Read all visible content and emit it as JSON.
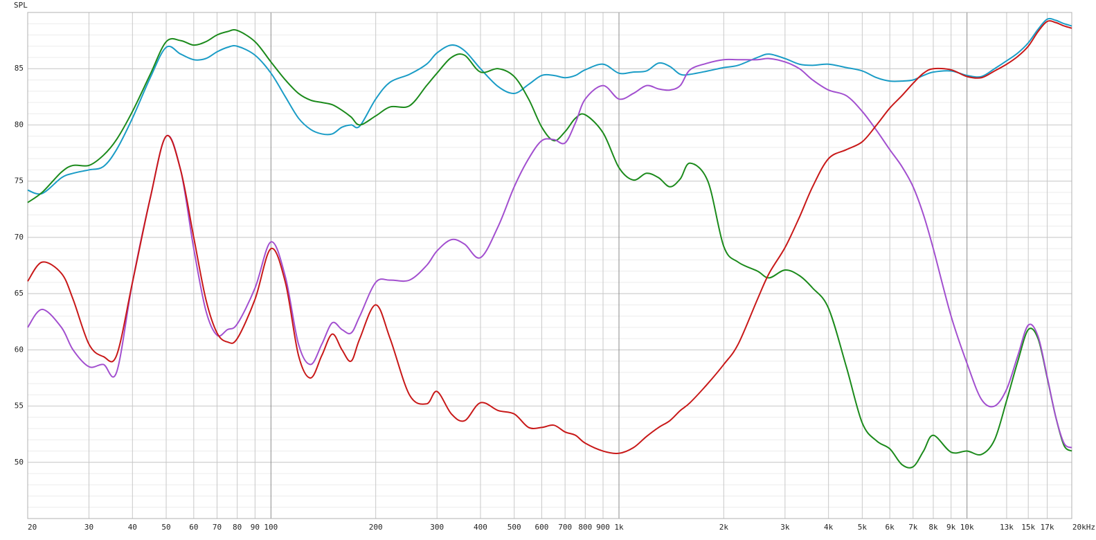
{
  "chart_data": {
    "type": "line",
    "y_label": "SPL",
    "x_scale": "log",
    "grid": true,
    "y_minor_step": 1,
    "xlim": [
      20,
      20000
    ],
    "ylim": [
      45,
      90
    ],
    "yticks": [
      50,
      55,
      60,
      65,
      70,
      75,
      80,
      85
    ],
    "xticks": [
      20,
      30,
      40,
      50,
      60,
      70,
      80,
      90,
      100,
      200,
      300,
      400,
      500,
      600,
      700,
      800,
      900,
      {
        "value": 1000,
        "label": "1k"
      },
      {
        "value": 2000,
        "label": "2k"
      },
      {
        "value": 3000,
        "label": "3k"
      },
      {
        "value": 4000,
        "label": "4k"
      },
      {
        "value": 5000,
        "label": "5k"
      },
      {
        "value": 6000,
        "label": "6k"
      },
      {
        "value": 7000,
        "label": "7k"
      },
      {
        "value": 8000,
        "label": "8k"
      },
      {
        "value": 9000,
        "label": "9k"
      },
      {
        "value": 10000,
        "label": "10k"
      },
      {
        "value": 13000,
        "label": "13k"
      },
      {
        "value": 15000,
        "label": "15k"
      },
      {
        "value": 17000,
        "label": "17k"
      },
      {
        "value": 20000,
        "label": "20kHz"
      }
    ],
    "x": [
      20,
      22,
      25,
      27,
      30,
      33,
      36,
      40,
      45,
      50,
      55,
      60,
      65,
      70,
      75,
      80,
      90,
      100,
      110,
      120,
      130,
      140,
      150,
      160,
      170,
      180,
      200,
      220,
      250,
      280,
      300,
      330,
      360,
      400,
      450,
      500,
      550,
      600,
      650,
      700,
      750,
      800,
      900,
      1000,
      1100,
      1200,
      1300,
      1400,
      1500,
      1600,
      1800,
      2000,
      2200,
      2500,
      2700,
      3000,
      3300,
      3600,
      4000,
      4500,
      5000,
      5500,
      6000,
      6500,
      7000,
      7500,
      8000,
      9000,
      10000,
      11000,
      12000,
      13000,
      14000,
      15000,
      16000,
      17000,
      18000,
      19000,
      20000
    ],
    "series": [
      {
        "color": "#1a9cc6",
        "values": [
          74.2,
          73.9,
          75.3,
          75.7,
          76.0,
          76.3,
          77.8,
          80.6,
          84.2,
          86.9,
          86.3,
          85.8,
          85.9,
          86.5,
          86.9,
          87.0,
          86.2,
          84.6,
          82.5,
          80.6,
          79.6,
          79.2,
          79.2,
          79.8,
          80.0,
          79.9,
          82.3,
          83.8,
          84.5,
          85.4,
          86.4,
          87.1,
          86.6,
          85.0,
          83.4,
          82.8,
          83.6,
          84.4,
          84.4,
          84.2,
          84.4,
          84.9,
          85.4,
          84.6,
          84.7,
          84.8,
          85.5,
          85.2,
          84.5,
          84.5,
          84.8,
          85.1,
          85.3,
          86.0,
          86.3,
          85.9,
          85.4,
          85.3,
          85.4,
          85.1,
          84.8,
          84.2,
          83.9,
          83.9,
          84.0,
          84.4,
          84.7,
          84.8,
          84.4,
          84.3,
          85.0,
          85.7,
          86.4,
          87.3,
          88.5,
          89.4,
          89.3,
          89.0,
          88.8
        ]
      },
      {
        "color": "#1b8a1b",
        "values": [
          73.1,
          74.0,
          75.8,
          76.4,
          76.4,
          77.3,
          78.7,
          81.2,
          84.5,
          87.4,
          87.5,
          87.1,
          87.4,
          88.0,
          88.3,
          88.4,
          87.4,
          85.6,
          84.0,
          82.8,
          82.2,
          82.0,
          81.8,
          81.3,
          80.7,
          80.0,
          80.8,
          81.6,
          81.7,
          83.5,
          84.6,
          86.0,
          86.2,
          84.7,
          85.0,
          84.3,
          82.3,
          79.8,
          78.6,
          79.4,
          80.6,
          80.9,
          79.3,
          76.2,
          75.1,
          75.7,
          75.3,
          74.5,
          75.2,
          76.6,
          75.0,
          69.2,
          67.8,
          67.0,
          66.4,
          67.1,
          66.6,
          65.5,
          63.7,
          58.5,
          53.5,
          51.9,
          51.2,
          49.8,
          49.6,
          51.0,
          52.4,
          50.9,
          51.0,
          50.7,
          52.0,
          55.5,
          59.0,
          61.8,
          61.0,
          57.5,
          54.0,
          51.5,
          51.0
        ]
      },
      {
        "color": "#a24fcf",
        "values": [
          62.0,
          63.6,
          62.0,
          60.0,
          58.5,
          58.7,
          58.0,
          66.0,
          73.5,
          79.0,
          76.0,
          69.0,
          63.5,
          61.3,
          61.8,
          62.3,
          65.5,
          69.6,
          66.5,
          60.5,
          58.7,
          60.5,
          62.4,
          61.8,
          61.5,
          63.0,
          66.0,
          66.2,
          66.2,
          67.5,
          68.8,
          69.8,
          69.4,
          68.2,
          71.0,
          74.5,
          77.0,
          78.6,
          78.7,
          78.4,
          80.2,
          82.3,
          83.5,
          82.3,
          82.8,
          83.5,
          83.2,
          83.1,
          83.5,
          84.9,
          85.5,
          85.8,
          85.8,
          85.8,
          85.9,
          85.6,
          85.0,
          84.0,
          83.1,
          82.6,
          81.2,
          79.5,
          77.8,
          76.3,
          74.5,
          72.0,
          69.0,
          63.0,
          58.8,
          55.6,
          55.0,
          56.5,
          59.5,
          62.2,
          61.2,
          57.6,
          54.0,
          51.7,
          51.3
        ]
      },
      {
        "color": "#c81818",
        "values": [
          66.1,
          67.8,
          66.8,
          64.5,
          60.5,
          59.4,
          59.5,
          66.0,
          73.5,
          79.0,
          76.0,
          70.0,
          64.5,
          61.5,
          60.7,
          61.0,
          64.5,
          69.0,
          66.0,
          59.5,
          57.5,
          59.5,
          61.4,
          60.0,
          59.0,
          61.0,
          64.0,
          61.0,
          56.0,
          55.2,
          56.3,
          54.3,
          53.7,
          55.3,
          54.6,
          54.3,
          53.1,
          53.1,
          53.3,
          52.7,
          52.4,
          51.7,
          51.0,
          50.8,
          51.3,
          52.3,
          53.1,
          53.7,
          54.6,
          55.3,
          57.0,
          58.7,
          60.5,
          64.5,
          66.8,
          69.1,
          71.8,
          74.5,
          77.0,
          77.8,
          78.5,
          80.0,
          81.5,
          82.6,
          83.7,
          84.6,
          85.0,
          84.9,
          84.3,
          84.2,
          84.8,
          85.4,
          86.1,
          87.0,
          88.3,
          89.2,
          89.1,
          88.8,
          88.6
        ]
      }
    ]
  }
}
